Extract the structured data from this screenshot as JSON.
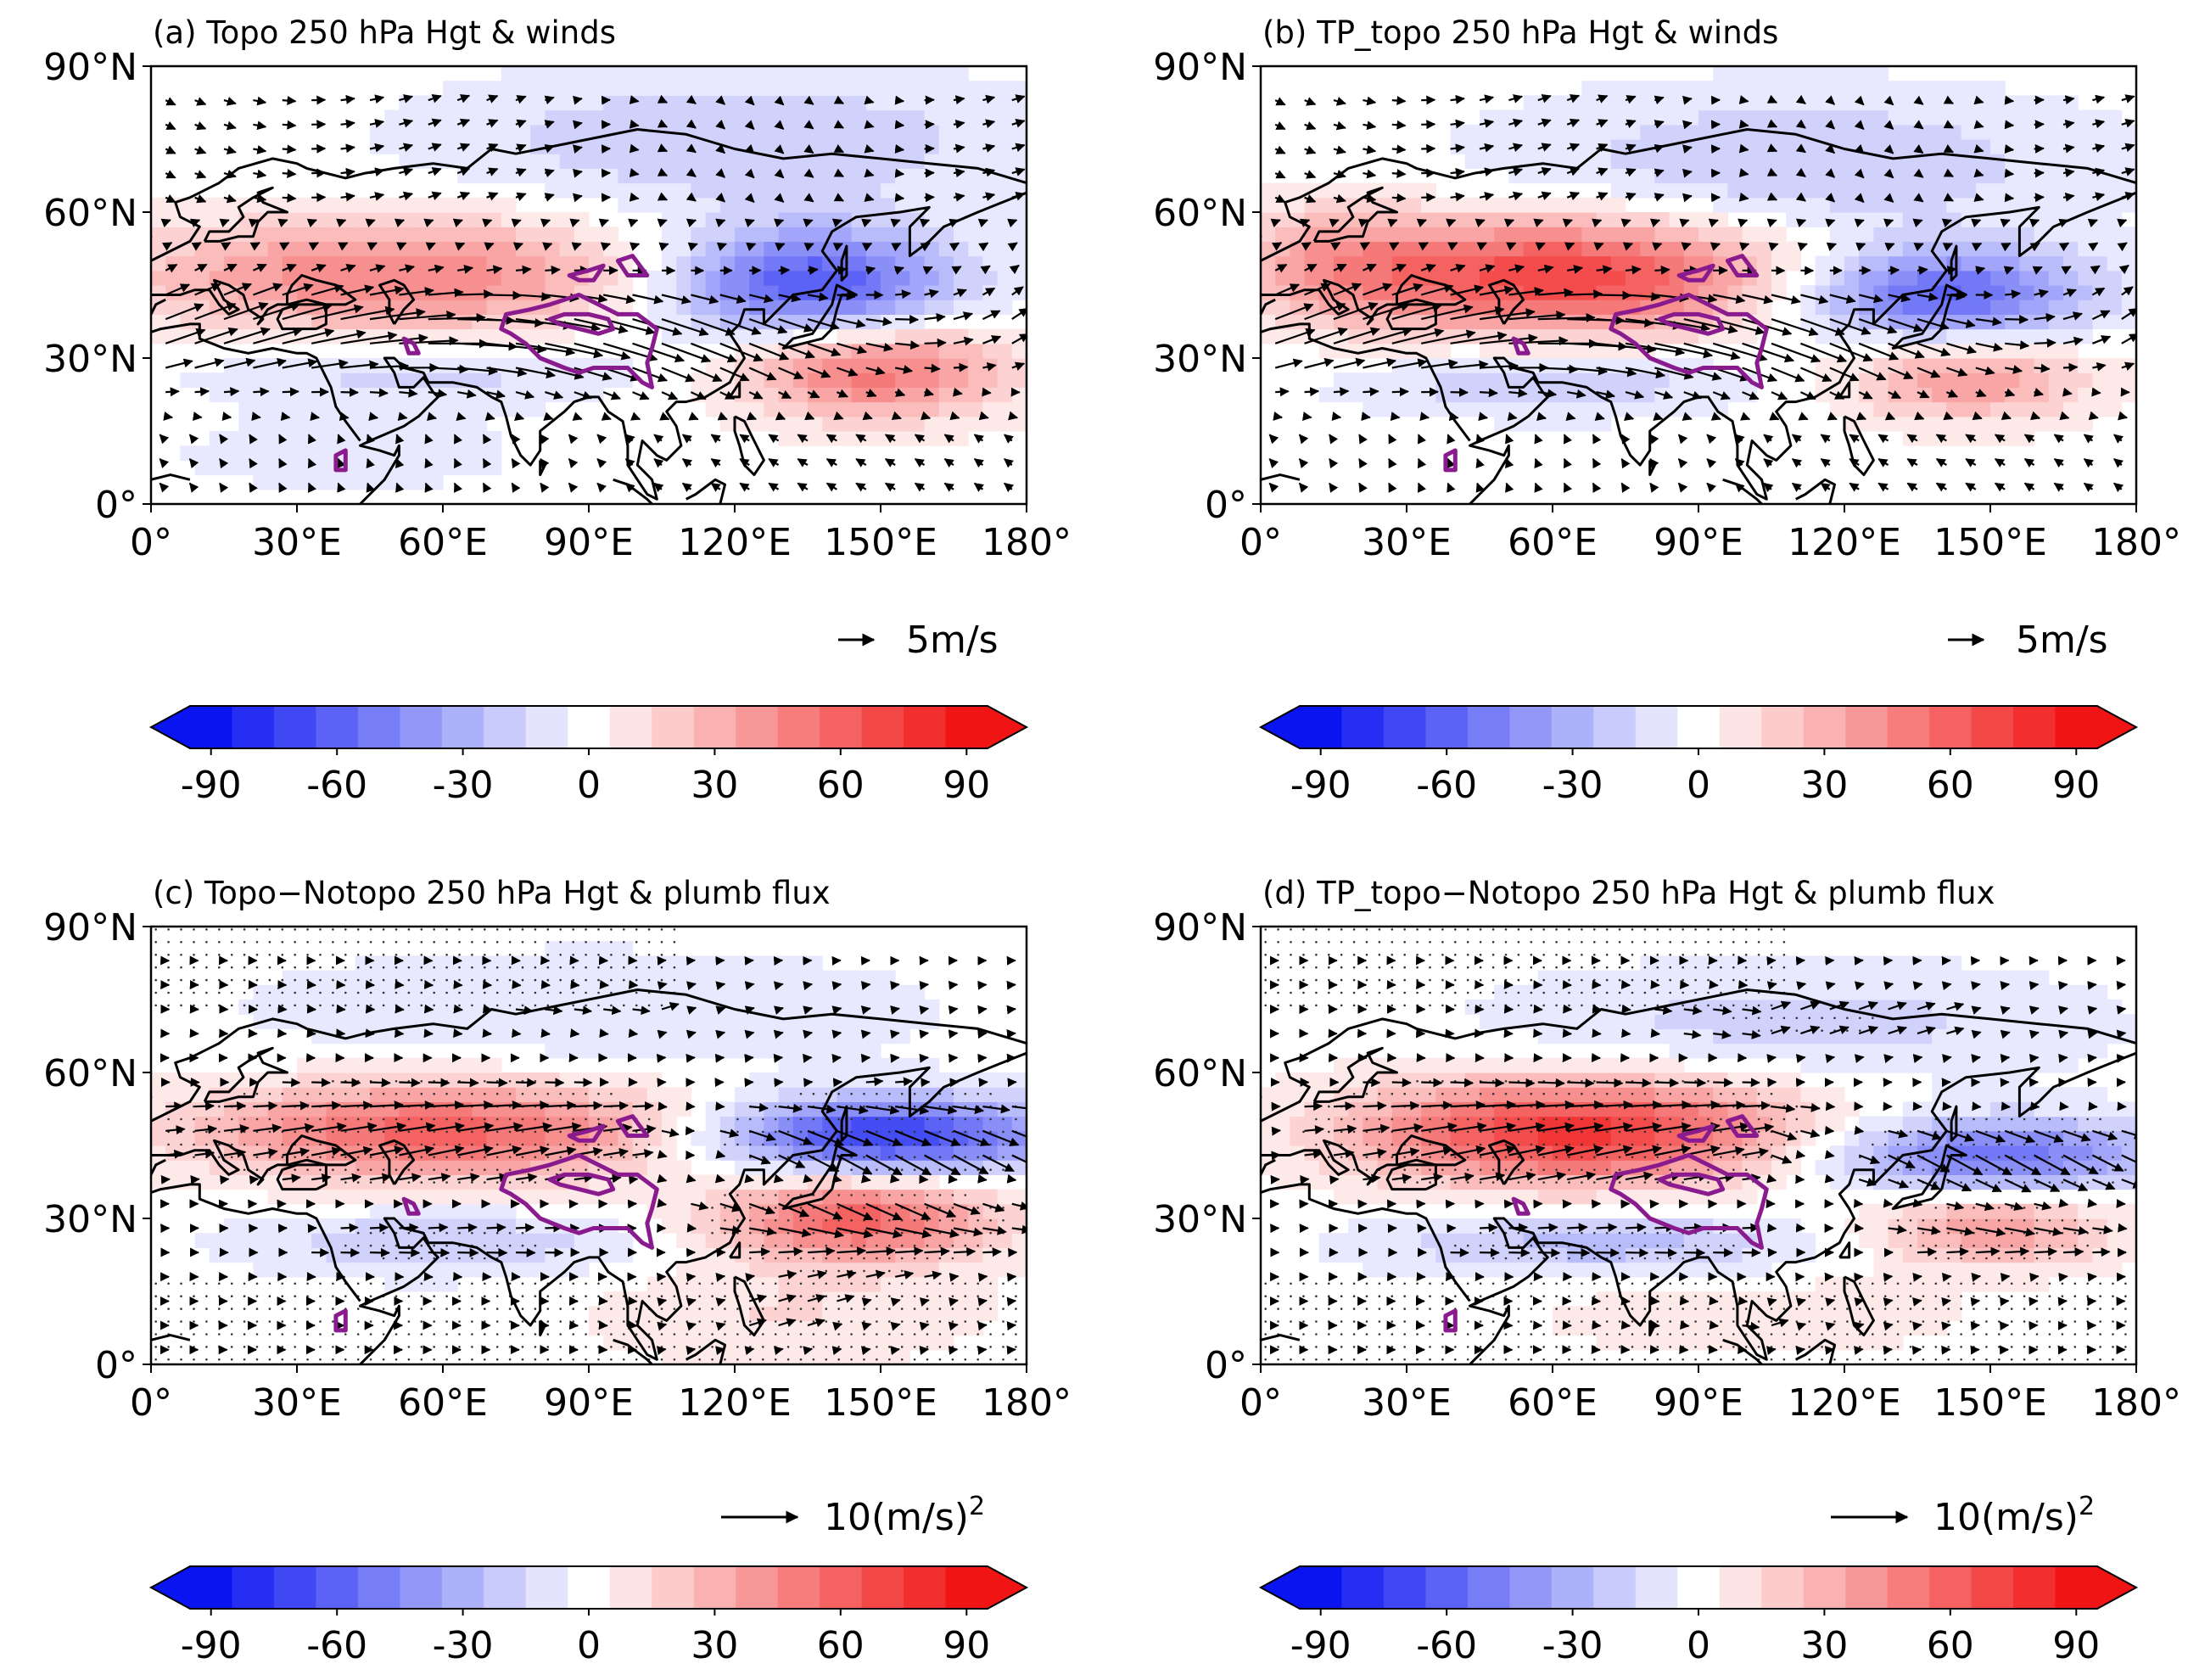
{
  "colors": {
    "negative_max": "#0a14f0",
    "neutral": "#ffffff",
    "positive_max": "#f01414",
    "tp_contour": "#8a1b8e",
    "coast": "#000000",
    "arrow": "#000000"
  },
  "chart_data": [
    {
      "id": "a",
      "type": "heatmap",
      "title": "(a) Topo 250 hPa Hgt & winds",
      "x_ticks": [
        "0°",
        "30°E",
        "60°E",
        "90°E",
        "120°E",
        "150°E",
        "180°"
      ],
      "y_ticks": [
        "90°N",
        "60°N",
        "30°N",
        "0°"
      ],
      "xlim": [
        0,
        180
      ],
      "ylim": [
        0,
        90
      ],
      "vector_key": {
        "arrow": "→",
        "text": "5m/s",
        "magnitude": 5
      },
      "stippling": false,
      "anomaly_centers": [
        {
          "lon": 50,
          "lat": 47,
          "value": 55,
          "lonw": 55,
          "latw": 12
        },
        {
          "lon": 135,
          "lat": 45,
          "value": -80,
          "lonw": 30,
          "latw": 12
        },
        {
          "lon": 148,
          "lat": 28,
          "value": 65,
          "lonw": 28,
          "latw": 10
        },
        {
          "lon": 55,
          "lat": 27,
          "value": -20,
          "lonw": 45,
          "latw": 7
        },
        {
          "lon": 120,
          "lat": 75,
          "value": -25,
          "lonw": 60,
          "latw": 14
        },
        {
          "lon": 40,
          "lat": 10,
          "value": -10,
          "lonw": 40,
          "latw": 8
        }
      ],
      "colorbar": {
        "ticks": [
          "-90",
          "-60",
          "-30",
          "0",
          "30",
          "60",
          "90"
        ],
        "range": [
          -105,
          105
        ],
        "step": 10,
        "extend": "both"
      }
    },
    {
      "id": "b",
      "type": "heatmap",
      "title": "(b) TP_topo 250 hPa Hgt & winds",
      "x_ticks": [
        "0°",
        "30°E",
        "60°E",
        "90°E",
        "120°E",
        "150°E",
        "180°"
      ],
      "y_ticks": [
        "90°N",
        "60°N",
        "30°N",
        "0°"
      ],
      "xlim": [
        0,
        180
      ],
      "ylim": [
        0,
        90
      ],
      "vector_key": {
        "arrow": "→",
        "text": "5m/s",
        "magnitude": 5
      },
      "stippling": false,
      "anomaly_centers": [
        {
          "lon": 62,
          "lat": 47,
          "value": 85,
          "lonw": 45,
          "latw": 12
        },
        {
          "lon": 140,
          "lat": 43,
          "value": -70,
          "lonw": 30,
          "latw": 10
        },
        {
          "lon": 145,
          "lat": 26,
          "value": 45,
          "lonw": 25,
          "latw": 9
        },
        {
          "lon": 60,
          "lat": 25,
          "value": -25,
          "lonw": 40,
          "latw": 7
        },
        {
          "lon": 110,
          "lat": 70,
          "value": -25,
          "lonw": 60,
          "latw": 15
        },
        {
          "lon": 15,
          "lat": 50,
          "value": 30,
          "lonw": 20,
          "latw": 12
        }
      ],
      "colorbar": {
        "ticks": [
          "-90",
          "-60",
          "-30",
          "0",
          "30",
          "60",
          "90"
        ],
        "range": [
          -105,
          105
        ],
        "step": 10,
        "extend": "both"
      }
    },
    {
      "id": "c",
      "type": "heatmap",
      "title": "(c) Topo−Notopo 250 hPa Hgt & plumb flux",
      "x_ticks": [
        "0°",
        "30°E",
        "60°E",
        "90°E",
        "120°E",
        "150°E",
        "180°"
      ],
      "y_ticks": [
        "90°N",
        "60°N",
        "30°N",
        "0°"
      ],
      "xlim": [
        0,
        180
      ],
      "ylim": [
        0,
        90
      ],
      "vector_key": {
        "arrow": "⟶",
        "text": "10(m/s)",
        "superscript": "2",
        "magnitude": 10
      },
      "stippling": true,
      "anomaly_centers": [
        {
          "lon": 60,
          "lat": 48,
          "value": 70,
          "lonw": 50,
          "latw": 10
        },
        {
          "lon": 150,
          "lat": 47,
          "value": -90,
          "lonw": 35,
          "latw": 8
        },
        {
          "lon": 145,
          "lat": 30,
          "value": 70,
          "lonw": 28,
          "latw": 9
        },
        {
          "lon": 60,
          "lat": 25,
          "value": -25,
          "lonw": 40,
          "latw": 7
        },
        {
          "lon": 90,
          "lat": 73,
          "value": -15,
          "lonw": 70,
          "latw": 12
        },
        {
          "lon": 130,
          "lat": 10,
          "value": 15,
          "lonw": 40,
          "latw": 10
        }
      ],
      "colorbar": {
        "ticks": [
          "-90",
          "-60",
          "-30",
          "0",
          "30",
          "60",
          "90"
        ],
        "range": [
          -105,
          105
        ],
        "step": 10,
        "extend": "both"
      }
    },
    {
      "id": "d",
      "type": "heatmap",
      "title": "(d) TP_topo−Notopo 250 hPa Hgt & plumb flux",
      "x_ticks": [
        "0°",
        "30°E",
        "60°E",
        "90°E",
        "120°E",
        "150°E",
        "180°"
      ],
      "y_ticks": [
        "90°N",
        "60°N",
        "30°N",
        "0°"
      ],
      "xlim": [
        0,
        180
      ],
      "ylim": [
        0,
        90
      ],
      "vector_key": {
        "arrow": "⟶",
        "text": "10(m/s)",
        "superscript": "2",
        "magnitude": 10
      },
      "stippling": true,
      "anomaly_centers": [
        {
          "lon": 65,
          "lat": 48,
          "value": 90,
          "lonw": 45,
          "latw": 11
        },
        {
          "lon": 150,
          "lat": 43,
          "value": -65,
          "lonw": 35,
          "latw": 8
        },
        {
          "lon": 150,
          "lat": 28,
          "value": 45,
          "lonw": 25,
          "latw": 8
        },
        {
          "lon": 70,
          "lat": 25,
          "value": -30,
          "lonw": 45,
          "latw": 7
        },
        {
          "lon": 110,
          "lat": 70,
          "value": -20,
          "lonw": 60,
          "latw": 12
        },
        {
          "lon": 100,
          "lat": 10,
          "value": 15,
          "lonw": 40,
          "latw": 8
        }
      ],
      "colorbar": {
        "ticks": [
          "-90",
          "-60",
          "-30",
          "0",
          "30",
          "60",
          "90"
        ],
        "range": [
          -105,
          105
        ],
        "step": 10,
        "extend": "both"
      }
    }
  ]
}
